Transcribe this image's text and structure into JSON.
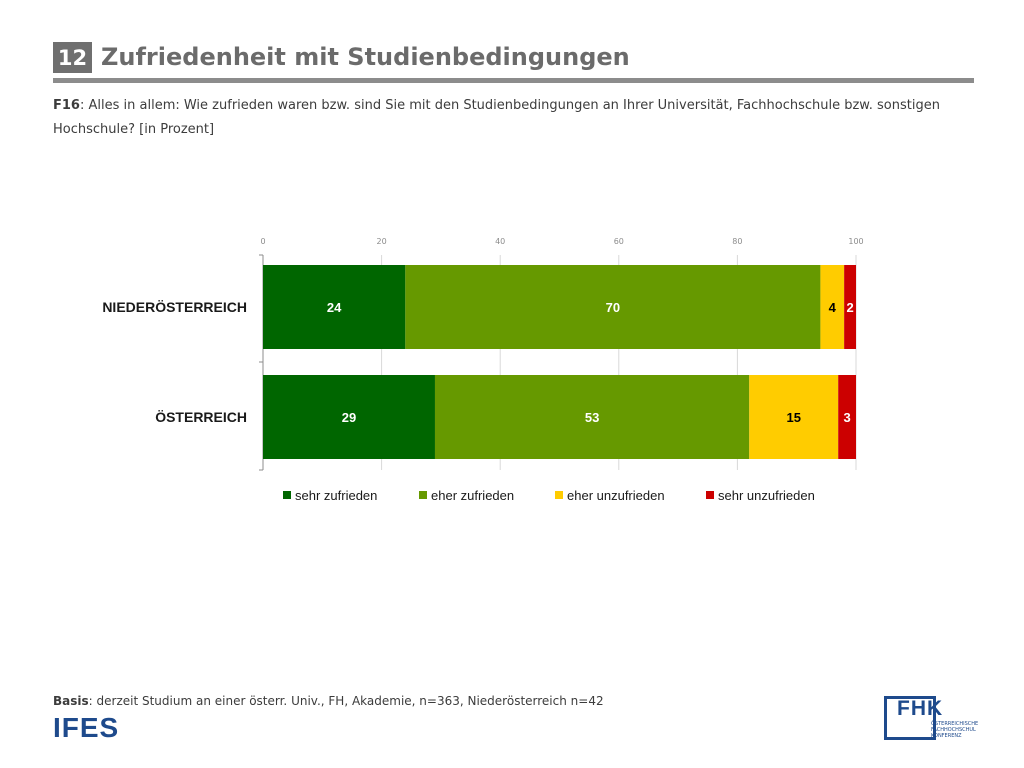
{
  "header": {
    "number": "12",
    "title": "Zufriedenheit mit Studienbedingungen"
  },
  "question": {
    "code": "F16",
    "text": ": Alles in allem: Wie zufrieden waren bzw. sind Sie mit den Studienbedingungen an Ihrer Universität, Fachhochschule bzw. sonstigen Hochschule? [in Prozent]"
  },
  "chart_data": {
    "type": "bar",
    "orientation": "horizontal",
    "stacked": true,
    "title": "",
    "xlabel": "",
    "ylabel": "",
    "xlim": [
      0,
      100
    ],
    "x_ticks": [
      0,
      20,
      40,
      60,
      80,
      100
    ],
    "categories": [
      "NIEDERÖSTERREICH",
      "ÖSTERREICH"
    ],
    "series": [
      {
        "name": "sehr zufrieden",
        "values": [
          24,
          29
        ],
        "color": "#006600",
        "label_color": "#ffffff"
      },
      {
        "name": "eher zufrieden",
        "values": [
          70,
          53
        ],
        "color": "#669900",
        "label_color": "#ffffff"
      },
      {
        "name": "eher unzufrieden",
        "values": [
          4,
          15
        ],
        "color": "#ffcc00",
        "label_color": "#000000"
      },
      {
        "name": "sehr unzufrieden",
        "values": [
          2,
          3
        ],
        "color": "#cc0000",
        "label_color": "#ffffff"
      }
    ],
    "grid": true,
    "legend_position": "bottom"
  },
  "footer": {
    "basis_label": "Basis",
    "basis_text": ": derzeit Studium an einer österr. Univ., FH, Akademie, n=363, Niederösterreich n=42",
    "ifes_logo_text": "IFES",
    "fhk_logo_text": "FHK",
    "fhk_subtext": "ÖSTERREICHISCHE FACHHOCHSCHUL KONFERENZ"
  }
}
